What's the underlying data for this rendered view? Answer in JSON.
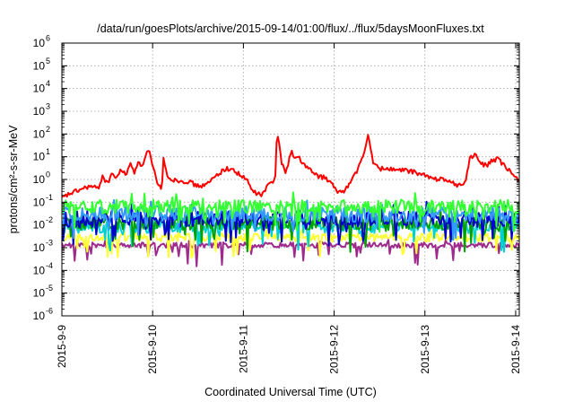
{
  "chart_data": {
    "type": "line",
    "title": "/data/run/goesPlots/archive/2015-09-14/01:00/flux/../flux/5daysMoonFluxes.txt",
    "xlabel": "Coordinated Universal Time (UTC)",
    "ylabel": "protons/cm²-s-sr-MeV",
    "y_scale": "log",
    "ylim": [
      1e-06,
      1000000.0
    ],
    "y_ticks": [
      {
        "exp": -6,
        "label": "-6"
      },
      {
        "exp": -5,
        "label": "-5"
      },
      {
        "exp": -4,
        "label": "-4"
      },
      {
        "exp": -3,
        "label": "-3"
      },
      {
        "exp": -2,
        "label": "-2"
      },
      {
        "exp": -1,
        "label": "-1"
      },
      {
        "exp": 0,
        "label": "0"
      },
      {
        "exp": 1,
        "label": "1"
      },
      {
        "exp": 2,
        "label": "2"
      },
      {
        "exp": 3,
        "label": "3"
      },
      {
        "exp": 4,
        "label": "4"
      },
      {
        "exp": 5,
        "label": "5"
      },
      {
        "exp": 6,
        "label": "6"
      }
    ],
    "y_tick_base": "10",
    "xlim": [
      "2015-09-09",
      "2015-09-14 01:00"
    ],
    "x_ticks": [
      {
        "day": 0,
        "label": "2015-9-9"
      },
      {
        "day": 1,
        "label": "2015-9-10"
      },
      {
        "day": 2,
        "label": "2015-9-11"
      },
      {
        "day": 3,
        "label": "2015-9-12"
      },
      {
        "day": 4,
        "label": "2015-9-13"
      },
      {
        "day": 5,
        "label": "2015-9-14"
      }
    ],
    "grid": true,
    "legend": "none",
    "series": [
      {
        "color": "#9e2a8c",
        "base": 0.0013,
        "noise": 0.12,
        "dip": 0.9,
        "seed": 11
      },
      {
        "color": "#ffff33",
        "base": 0.0028,
        "noise": 0.18,
        "dip": 0.9,
        "seed": 12
      },
      {
        "color": "#00d0d0",
        "base": 0.0085,
        "noise": 0.3,
        "dip": 1.0,
        "seed": 13
      },
      {
        "color": "#00a000",
        "base": 0.012,
        "noise": 0.3,
        "dip": 1.0,
        "seed": 14
      },
      {
        "color": "#0000cc",
        "base": 0.018,
        "noise": 0.35,
        "dip": 1.0,
        "seed": 15
      },
      {
        "color": "#3399ff",
        "base": 0.03,
        "noise": 0.35,
        "dip": 1.0,
        "seed": 16
      },
      {
        "color": "#33ff33",
        "base": 0.065,
        "noise": 0.3,
        "dip": 0.9,
        "seed": 17
      },
      {
        "color": "#ff0000",
        "seed": 18,
        "noise": 0.1,
        "points": [
          [
            0.0,
            0.15
          ],
          [
            0.1,
            0.25
          ],
          [
            0.2,
            0.35
          ],
          [
            0.3,
            0.5
          ],
          [
            0.4,
            0.4
          ],
          [
            0.45,
            1.5
          ],
          [
            0.5,
            0.6
          ],
          [
            0.55,
            2.0
          ],
          [
            0.6,
            1.0
          ],
          [
            0.65,
            3.0
          ],
          [
            0.7,
            1.5
          ],
          [
            0.75,
            5.0
          ],
          [
            0.8,
            2.0
          ],
          [
            0.85,
            8.0
          ],
          [
            0.88,
            3.0
          ],
          [
            0.92,
            12.0
          ],
          [
            0.96,
            20.0
          ],
          [
            0.99,
            5.0
          ],
          [
            1.02,
            2.0
          ],
          [
            1.05,
            0.6
          ],
          [
            1.1,
            0.4
          ],
          [
            1.12,
            8.0
          ],
          [
            1.15,
            2.0
          ],
          [
            1.2,
            1.0
          ],
          [
            1.3,
            0.9
          ],
          [
            1.4,
            0.8
          ],
          [
            1.5,
            0.5
          ],
          [
            1.6,
            0.6
          ],
          [
            1.7,
            1.5
          ],
          [
            1.8,
            3.0
          ],
          [
            1.9,
            2.5
          ],
          [
            2.0,
            1.2
          ],
          [
            2.05,
            0.8
          ],
          [
            2.1,
            0.3
          ],
          [
            2.2,
            0.2
          ],
          [
            2.28,
            0.6
          ],
          [
            2.35,
            1.0
          ],
          [
            2.37,
            150.0
          ],
          [
            2.39,
            60.0
          ],
          [
            2.42,
            5.0
          ],
          [
            2.47,
            2.0
          ],
          [
            2.5,
            7.0
          ],
          [
            2.53,
            20.0
          ],
          [
            2.56,
            8.0
          ],
          [
            2.62,
            10.0
          ],
          [
            2.65,
            5.0
          ],
          [
            2.72,
            3.0
          ],
          [
            2.8,
            1.5
          ],
          [
            2.9,
            1.2
          ],
          [
            2.98,
            0.6
          ],
          [
            3.02,
            0.3
          ],
          [
            3.1,
            0.3
          ],
          [
            3.15,
            0.5
          ],
          [
            3.2,
            1.0
          ],
          [
            3.3,
            6.0
          ],
          [
            3.34,
            20.0
          ],
          [
            3.37,
            100.0
          ],
          [
            3.4,
            30.0
          ],
          [
            3.43,
            5.0
          ],
          [
            3.5,
            3.0
          ],
          [
            3.6,
            3.0
          ],
          [
            3.7,
            2.5
          ],
          [
            3.8,
            2.5
          ],
          [
            3.9,
            2.0
          ],
          [
            4.0,
            1.5
          ],
          [
            4.1,
            1.0
          ],
          [
            4.2,
            1.2
          ],
          [
            4.25,
            0.8
          ],
          [
            4.3,
            0.7
          ],
          [
            4.4,
            0.5
          ],
          [
            4.45,
            1.0
          ],
          [
            4.5,
            10.0
          ],
          [
            4.55,
            12.0
          ],
          [
            4.62,
            5.0
          ],
          [
            4.68,
            4.0
          ],
          [
            4.72,
            6.0
          ],
          [
            4.8,
            8.0
          ],
          [
            4.85,
            5.0
          ],
          [
            4.9,
            3.0
          ],
          [
            4.95,
            2.0
          ],
          [
            5.0,
            1.2
          ],
          [
            5.04,
            1.0
          ]
        ]
      }
    ]
  }
}
